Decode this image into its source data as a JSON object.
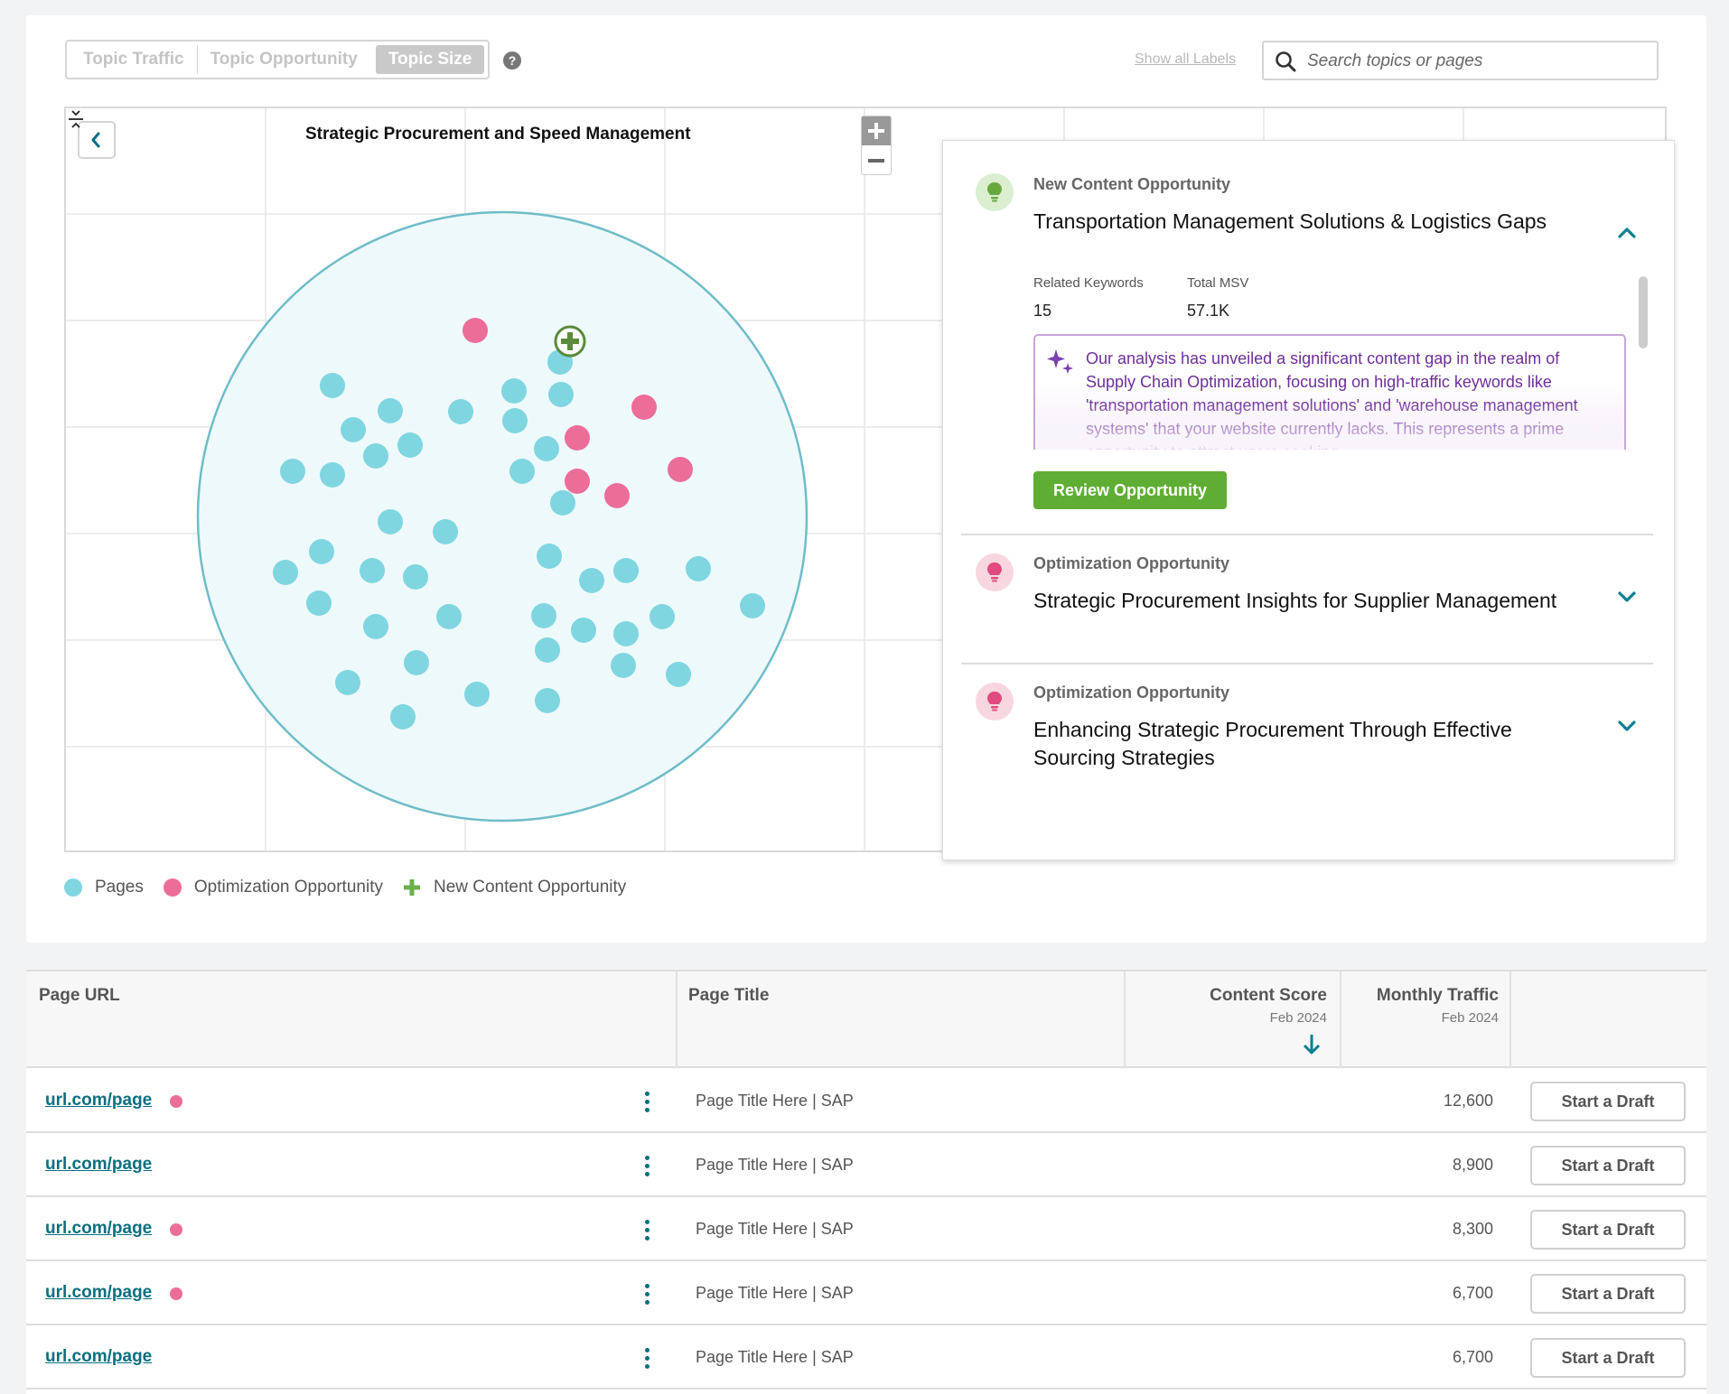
{
  "toolbar": {
    "toggle": [
      "Topic Traffic",
      "Topic Opportunity",
      "Topic Size"
    ],
    "active_toggle": "Topic Size",
    "help_icon": "question-circle-icon",
    "show_labels": "Show all Labels",
    "search_placeholder": "Search topics or pages"
  },
  "chart": {
    "title": "Strategic Procurement and Speed Management"
  },
  "chart_data": {
    "type": "scatter",
    "title": "Strategic Procurement and Speed Management",
    "grid": true,
    "series": [
      {
        "name": "Pages",
        "color": "#7fd6e0",
        "count": 46
      },
      {
        "name": "Optimization Opportunity",
        "color": "#ec6d98",
        "count": 6
      },
      {
        "name": "New Content Opportunity",
        "color": "#5a8a3a",
        "count": 1
      }
    ]
  },
  "panel": {
    "opportunities": [
      {
        "type": "New Content Opportunity",
        "title": "Transportation Management Solutions & Logistics Gaps",
        "expanded": true,
        "related_keywords_label": "Related Keywords",
        "related_keywords": "15",
        "total_msv_label": "Total MSV",
        "total_msv": "57.1K",
        "ai_summary": "Our analysis has unveiled a significant content gap in the realm of Supply Chain Optimization, focusing on high-traffic keywords like 'transportation management solutions' and 'warehouse management systems' that your website currently lacks. This represents a prime opportunity to attract users seeking",
        "cta": "Review Opportunity"
      },
      {
        "type": "Optimization Opportunity",
        "title": "Strategic Procurement Insights for Supplier Management",
        "expanded": false
      },
      {
        "type": "Optimization Opportunity",
        "title": "Enhancing Strategic Procurement Through Effective Sourcing Strategies",
        "expanded": false
      }
    ]
  },
  "legend": [
    {
      "label": "Pages",
      "color": "#7fd6e0"
    },
    {
      "label": "Optimization Opportunity",
      "color": "#ec6d98"
    },
    {
      "label": "New Content Opportunity",
      "color": "#6ab04c"
    }
  ],
  "table": {
    "headers": {
      "page_url": "Page URL",
      "page_title": "Page Title",
      "content_score": "Content Score",
      "content_score_date": "Feb 2024",
      "monthly_traffic": "Monthly Traffic",
      "monthly_traffic_date": "Feb 2024"
    },
    "rows": [
      {
        "url": "url.com/page",
        "flag": true,
        "title": "Page Title Here | SAP",
        "traffic": "12,600",
        "action": "Start a Draft"
      },
      {
        "url": "url.com/page",
        "flag": false,
        "title": "Page Title Here | SAP",
        "traffic": "8,900",
        "action": "Start a Draft"
      },
      {
        "url": "url.com/page",
        "flag": true,
        "title": "Page Title Here | SAP",
        "traffic": "8,300",
        "action": "Start a Draft"
      },
      {
        "url": "url.com/page",
        "flag": true,
        "title": "Page Title Here | SAP",
        "traffic": "6,700",
        "action": "Start a Draft"
      },
      {
        "url": "url.com/page",
        "flag": false,
        "title": "Page Title Here | SAP",
        "traffic": "6,700",
        "action": "Start a Draft"
      }
    ]
  }
}
